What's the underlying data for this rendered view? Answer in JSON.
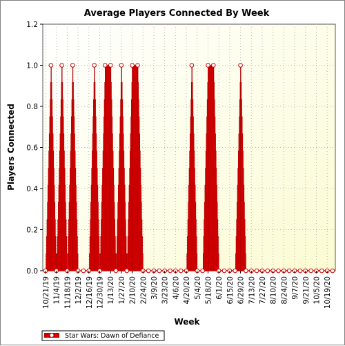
{
  "chart_data": {
    "type": "line",
    "title": "Average Players Connected By Week",
    "xlabel": "Week",
    "ylabel": "Players Connected",
    "ylim": [
      0,
      1.2
    ],
    "yticks": [
      "0.0",
      "0.2",
      "0.4",
      "0.6",
      "0.8",
      "1.0",
      "1.2"
    ],
    "grid": true,
    "legend_position": "bottom-left",
    "tick_labels": [
      "10/21/19",
      "11/4/19",
      "11/18/19",
      "12/2/19",
      "12/16/19",
      "12/30/19",
      "1/13/20",
      "1/27/20",
      "2/10/20",
      "2/24/20",
      "3/9/20",
      "3/23/20",
      "4/6/20",
      "4/20/20",
      "5/4/20",
      "5/18/20",
      "6/1/20",
      "6/15/20",
      "6/29/20",
      "7/13/20",
      "7/27/20",
      "8/10/20",
      "8/24/20",
      "9/7/20",
      "9/21/20",
      "10/5/20",
      "10/19/20"
    ],
    "x": [
      "10/21/19",
      "10/28/19",
      "11/4/19",
      "11/11/19",
      "11/18/19",
      "11/25/19",
      "12/2/19",
      "12/9/19",
      "12/16/19",
      "12/23/19",
      "12/30/19",
      "1/6/20",
      "1/13/20",
      "1/20/20",
      "1/27/20",
      "2/3/20",
      "2/10/20",
      "2/17/20",
      "2/24/20",
      "3/2/20",
      "3/9/20",
      "3/16/20",
      "3/23/20",
      "3/30/20",
      "4/6/20",
      "4/13/20",
      "4/20/20",
      "4/27/20",
      "5/4/20",
      "5/11/20",
      "5/18/20",
      "5/25/20",
      "6/1/20",
      "6/8/20",
      "6/15/20",
      "6/22/20",
      "6/29/20",
      "7/6/20",
      "7/13/20",
      "7/20/20",
      "7/27/20",
      "8/3/20",
      "8/10/20",
      "8/17/20",
      "8/24/20",
      "8/31/20",
      "9/7/20",
      "9/14/20",
      "9/21/20",
      "9/28/20",
      "10/5/20",
      "10/12/20",
      "10/19/20",
      "10/26/20"
    ],
    "series": [
      {
        "name": "Star Wars: Dawn of Defiance",
        "color": "#cc0000",
        "values": [
          0,
          1,
          0,
          1,
          0,
          1,
          0,
          0,
          0,
          1,
          0,
          1,
          1,
          0,
          1,
          0,
          1,
          1,
          0,
          0,
          0,
          0,
          0,
          0,
          0,
          0,
          0,
          1,
          0,
          0,
          1,
          1,
          0,
          0,
          0,
          0,
          1,
          0,
          0,
          0,
          0,
          0,
          0,
          0,
          0,
          0,
          0,
          0,
          0,
          0,
          0,
          0,
          0,
          0
        ]
      }
    ]
  }
}
